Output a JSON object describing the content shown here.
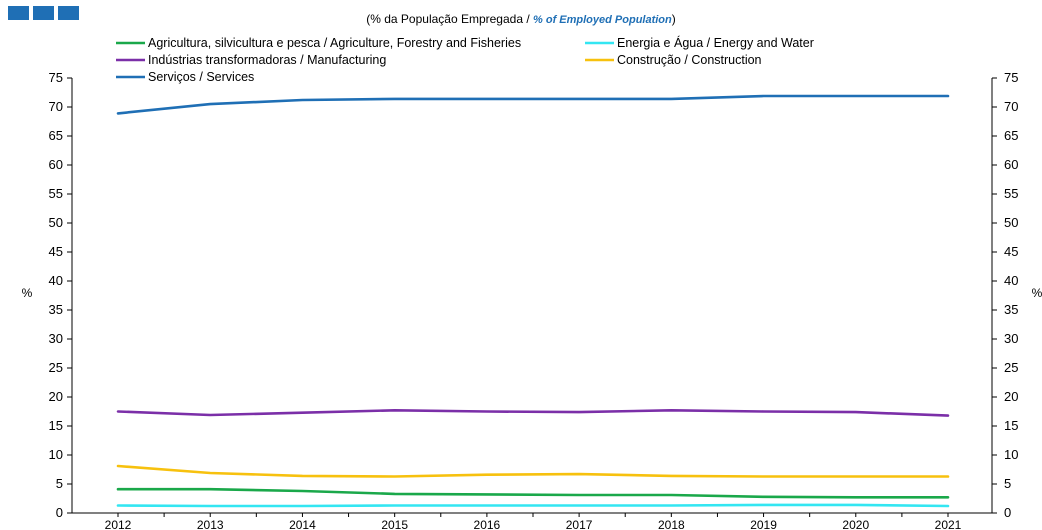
{
  "subtitle": {
    "prefix": "(% da População Empregada / ",
    "english": "% of Employed Population",
    "suffix": ")"
  },
  "chart_data": {
    "type": "line",
    "x": [
      "2012",
      "2013",
      "2014",
      "2015",
      "2016",
      "2017",
      "2018",
      "2019",
      "2020",
      "2021"
    ],
    "ylim": [
      0,
      75
    ],
    "yticks": [
      0,
      5,
      10,
      15,
      20,
      25,
      30,
      35,
      40,
      45,
      50,
      55,
      60,
      65,
      70,
      75
    ],
    "ylabel_left": "%",
    "ylabel_right": "%",
    "grid": false,
    "legend_position": "top",
    "series": [
      {
        "name": "Agricultura, silvicultura e pesca / Agriculture, Forestry and Fisheries",
        "color": "#1aa84a",
        "values": [
          4.1,
          4.1,
          3.8,
          3.3,
          3.2,
          3.1,
          3.1,
          2.8,
          2.7,
          2.7
        ]
      },
      {
        "name": "Energia e Água / Energy and Water",
        "color": "#33e6f2",
        "values": [
          1.3,
          1.2,
          1.2,
          1.3,
          1.3,
          1.3,
          1.3,
          1.4,
          1.4,
          1.2
        ]
      },
      {
        "name": "Indústrias transformadoras / Manufacturing",
        "color": "#7b2fa8",
        "values": [
          17.5,
          16.9,
          17.3,
          17.7,
          17.5,
          17.4,
          17.7,
          17.5,
          17.4,
          16.8
        ]
      },
      {
        "name": "Construção / Construction",
        "color": "#f7c10e",
        "values": [
          8.1,
          6.9,
          6.4,
          6.3,
          6.6,
          6.7,
          6.4,
          6.3,
          6.3,
          6.3
        ]
      },
      {
        "name": "Serviços / Services",
        "color": "#1f6fb5",
        "values": [
          68.9,
          70.5,
          71.2,
          71.4,
          71.4,
          71.4,
          71.4,
          71.9,
          71.9,
          71.9
        ]
      }
    ]
  }
}
